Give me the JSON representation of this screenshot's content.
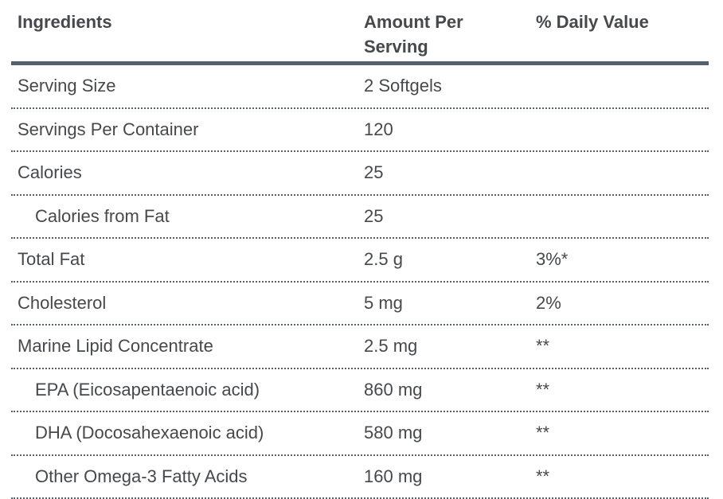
{
  "table": {
    "columns": [
      {
        "label": "Ingredients"
      },
      {
        "label": "Amount Per Serving"
      },
      {
        "label": "% Daily Value"
      }
    ],
    "rows": [
      {
        "ingredient": "Serving Size",
        "amount": "2 Softgels",
        "daily_value": "",
        "indent": false
      },
      {
        "ingredient": "Servings Per Container",
        "amount": "120",
        "daily_value": "",
        "indent": false
      },
      {
        "ingredient": "Calories",
        "amount": "25",
        "daily_value": "",
        "indent": false
      },
      {
        "ingredient": "Calories from Fat",
        "amount": "25",
        "daily_value": "",
        "indent": true
      },
      {
        "ingredient": "Total Fat",
        "amount": "2.5 g",
        "daily_value": "3%*",
        "indent": false
      },
      {
        "ingredient": "Cholesterol",
        "amount": "5 mg",
        "daily_value": "2%",
        "indent": false
      },
      {
        "ingredient": "Marine Lipid Concentrate",
        "amount": "2.5 mg",
        "daily_value": "**",
        "indent": false
      },
      {
        "ingredient": "EPA (Eicosapentaenoic acid)",
        "amount": "860 mg",
        "daily_value": "**",
        "indent": true
      },
      {
        "ingredient": "DHA (Docosahexaenoic acid)",
        "amount": "580 mg",
        "daily_value": "**",
        "indent": true
      },
      {
        "ingredient": "Other Omega-3 Fatty Acids",
        "amount": "160 mg",
        "daily_value": "**",
        "indent": true
      }
    ],
    "colors": {
      "text": "#45494c",
      "rule": "#566170"
    }
  }
}
